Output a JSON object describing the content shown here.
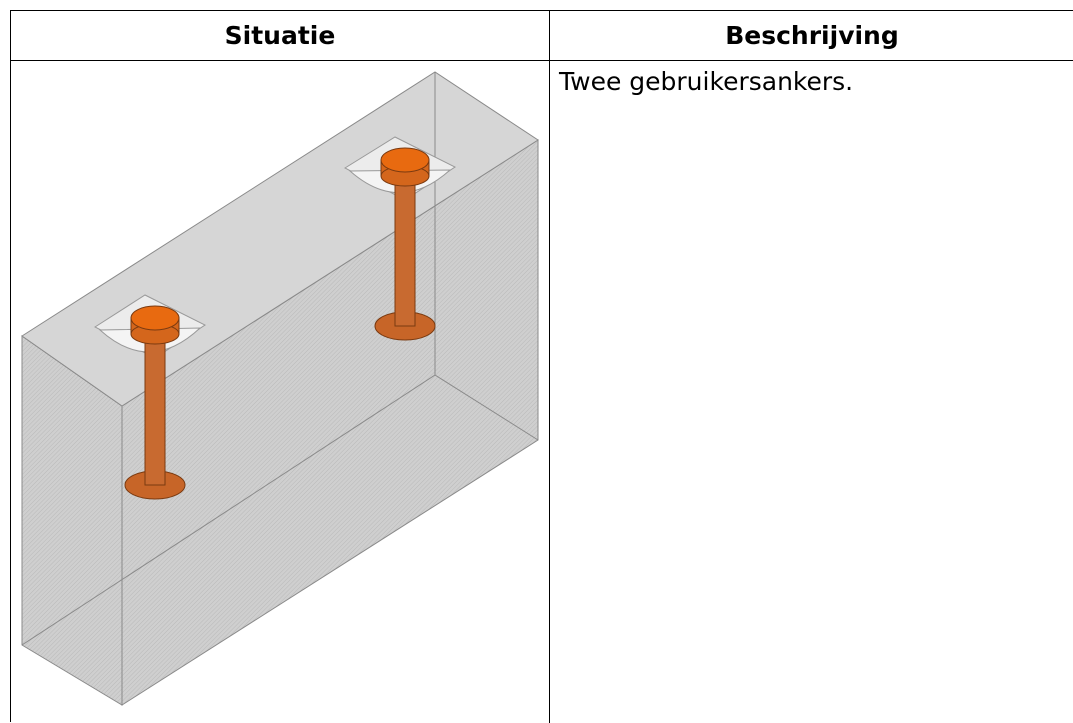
{
  "table": {
    "columns": [
      "Situatie",
      "Beschrijving"
    ],
    "rows": [
      {
        "description": "Twee gebruikersankers."
      }
    ]
  }
}
